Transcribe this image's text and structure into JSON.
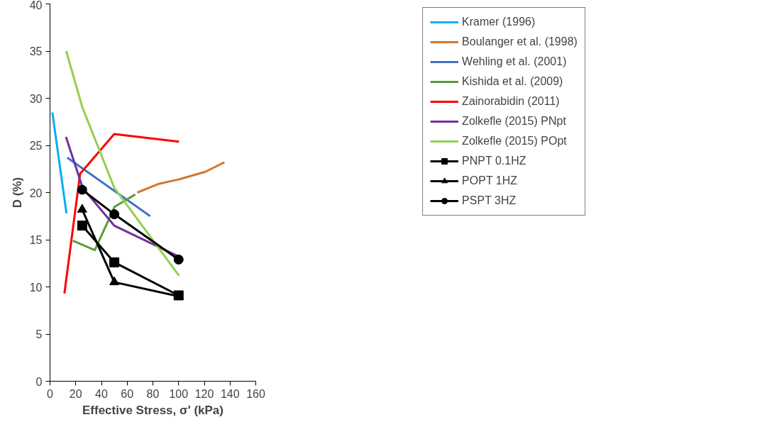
{
  "chart_data": {
    "type": "line",
    "xlabel": "Effective Stress, σ' (kPa)",
    "ylabel": "D (%)",
    "xlim": [
      0,
      160
    ],
    "ylim": [
      0,
      40
    ],
    "xticks": [
      0,
      20,
      40,
      60,
      80,
      100,
      120,
      140,
      160
    ],
    "yticks": [
      0,
      5,
      10,
      15,
      20,
      25,
      30,
      35,
      40
    ],
    "grid": false,
    "legend": "right",
    "marker": "none",
    "series": [
      {
        "name": "Kramer (1996)",
        "color": "#00b0f0",
        "x": [
          1.8,
          12.8
        ],
        "values": [
          28.5,
          17.8
        ]
      },
      {
        "name": "Boulanger et al. (1998)",
        "color": "#d0782f",
        "x": [
          67.9,
          83.9,
          100.3,
          120.7,
          135.6
        ],
        "values": [
          20.0,
          20.9,
          21.4,
          22.2,
          23.2
        ]
      },
      {
        "name": "Wehling et al. (2001)",
        "color": "#4472c4",
        "x": [
          13.4,
          77.9
        ],
        "values": [
          23.7,
          17.5
        ]
      },
      {
        "name": "Kishida et al. (2009)",
        "color": "#5b9b3a",
        "x": [
          17.8,
          34.8,
          50.3,
          66.3
        ],
        "values": [
          14.9,
          13.9,
          18.5,
          19.8
        ]
      },
      {
        "name": "Zainorabidin (2011)",
        "color": "#ff0000",
        "x": [
          11.2,
          23.4,
          49.9,
          100.3
        ],
        "values": [
          9.3,
          22.0,
          26.2,
          25.4
        ]
      },
      {
        "name": "Zolkefle (2015) PNpt",
        "color": "#7030a0",
        "x": [
          12.4,
          25.4,
          49.9,
          100.3
        ],
        "values": [
          25.9,
          20.5,
          16.5,
          13.2
        ]
      },
      {
        "name": "Zolkefle (2015) POpt",
        "color": "#92d050",
        "x": [
          12.6,
          25.0,
          50.0,
          100.3
        ],
        "values": [
          35.0,
          29.1,
          20.5,
          11.2
        ]
      },
      {
        "name": "PNPT 0.1HZ",
        "color": "#000000",
        "marker": "square",
        "x": [
          25,
          50,
          100
        ],
        "values": [
          16.5,
          12.6,
          9.1
        ]
      },
      {
        "name": "POPT 1HZ",
        "color": "#000000",
        "marker": "triangle",
        "x": [
          25,
          50,
          100
        ],
        "values": [
          18.2,
          10.5,
          9.0
        ]
      },
      {
        "name": "PSPT 3HZ",
        "color": "#000000",
        "marker": "circle",
        "x": [
          25,
          50,
          100
        ],
        "values": [
          20.3,
          17.7,
          12.9
        ]
      }
    ]
  }
}
